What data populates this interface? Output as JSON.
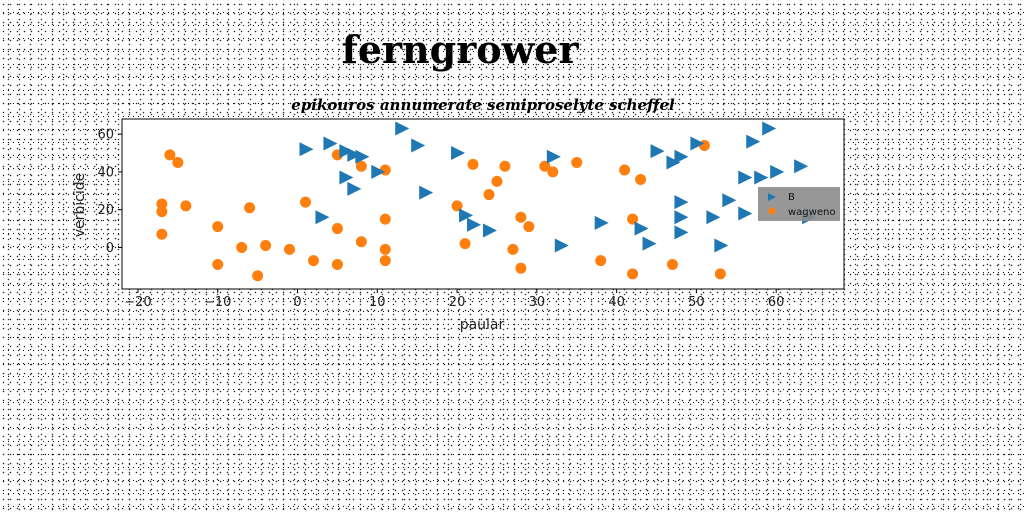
{
  "chart_data": {
    "type": "scatter",
    "title": "ferngrower",
    "subtitle": "epikouros annumerate semiproselyte scheffel",
    "xlabel": "paular",
    "ylabel": "verbicide",
    "xlim": [
      -22,
      68.5
    ],
    "ylim": [
      -22,
      68
    ],
    "xticks": [
      -20,
      -10,
      0,
      10,
      20,
      30,
      40,
      50,
      60
    ],
    "yticks": [
      0,
      20,
      40,
      60
    ],
    "grid": false,
    "legend_position": "right",
    "series": [
      {
        "name": "B",
        "marker": "triangle-right",
        "color": "#1f77b4",
        "points": [
          [
            1,
            52
          ],
          [
            4,
            55
          ],
          [
            6,
            51
          ],
          [
            7,
            49
          ],
          [
            8,
            48
          ],
          [
            13,
            63
          ],
          [
            15,
            54
          ],
          [
            10,
            40
          ],
          [
            6,
            37
          ],
          [
            7,
            31
          ],
          [
            16,
            29
          ],
          [
            3,
            16
          ],
          [
            20,
            50
          ],
          [
            21,
            17
          ],
          [
            22,
            12
          ],
          [
            24,
            9
          ],
          [
            32,
            48
          ],
          [
            33,
            1
          ],
          [
            38,
            13
          ],
          [
            43,
            10
          ],
          [
            44,
            2
          ],
          [
            45,
            51
          ],
          [
            48,
            48
          ],
          [
            47,
            45
          ],
          [
            50,
            55
          ],
          [
            48,
            24
          ],
          [
            48,
            16
          ],
          [
            48,
            8
          ],
          [
            52,
            16
          ],
          [
            53,
            1
          ],
          [
            54,
            25
          ],
          [
            56,
            18
          ],
          [
            56,
            37
          ],
          [
            57,
            56
          ],
          [
            58,
            37
          ],
          [
            59,
            63
          ],
          [
            60,
            40
          ],
          [
            63,
            43
          ],
          [
            64,
            16
          ]
        ]
      },
      {
        "name": "wagweno",
        "marker": "circle",
        "color": "#ff7f0e",
        "points": [
          [
            -16,
            49
          ],
          [
            -15,
            45
          ],
          [
            -17,
            23
          ],
          [
            -17,
            19
          ],
          [
            -14,
            22
          ],
          [
            -17,
            7
          ],
          [
            -10,
            11
          ],
          [
            -10,
            -9
          ],
          [
            -7,
            0
          ],
          [
            -6,
            21
          ],
          [
            -5,
            -15
          ],
          [
            -4,
            1
          ],
          [
            -1,
            -1
          ],
          [
            1,
            24
          ],
          [
            2,
            -7
          ],
          [
            5,
            49
          ],
          [
            5,
            10
          ],
          [
            5,
            -9
          ],
          [
            8,
            43
          ],
          [
            8,
            3
          ],
          [
            11,
            41
          ],
          [
            11,
            15
          ],
          [
            11,
            -1
          ],
          [
            11,
            -7
          ],
          [
            20,
            22
          ],
          [
            21,
            2
          ],
          [
            22,
            44
          ],
          [
            24,
            28
          ],
          [
            25,
            35
          ],
          [
            26,
            43
          ],
          [
            27,
            -1
          ],
          [
            28,
            16
          ],
          [
            28,
            -11
          ],
          [
            29,
            11
          ],
          [
            31,
            43
          ],
          [
            32,
            40
          ],
          [
            35,
            45
          ],
          [
            38,
            -7
          ],
          [
            41,
            41
          ],
          [
            42,
            15
          ],
          [
            42,
            -14
          ],
          [
            43,
            36
          ],
          [
            47,
            -9
          ],
          [
            51,
            54
          ],
          [
            53,
            -14
          ]
        ]
      }
    ]
  }
}
